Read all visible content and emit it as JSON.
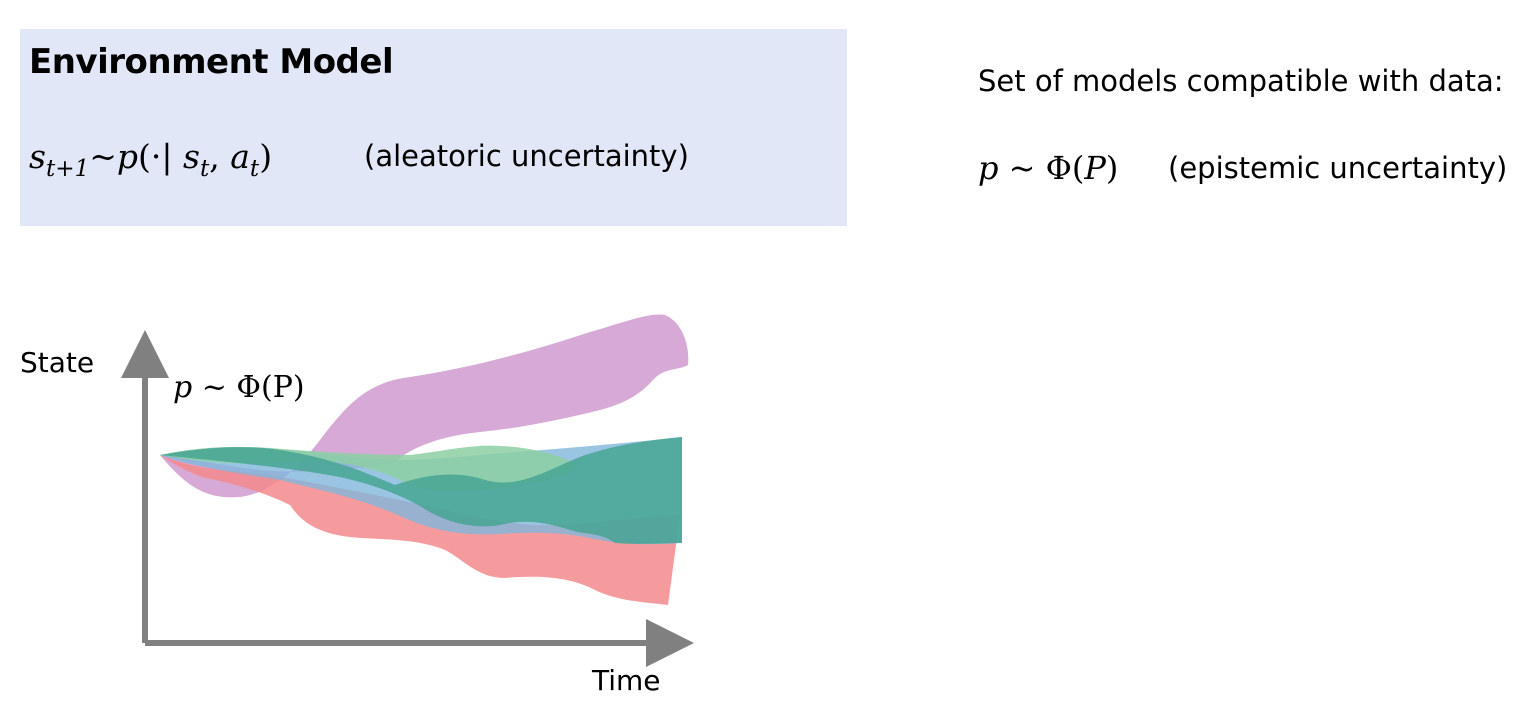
{
  "model_box": {
    "title": "Environment Model",
    "formula": {
      "lhs": "s",
      "lhs_sub": "t+1",
      "rel": "~",
      "fn": "p",
      "open": "(·| ",
      "arg1": "s",
      "arg1_sub": "t",
      "comma": ", ",
      "arg2": "a",
      "arg2_sub": "t",
      "close": ")"
    },
    "note": "(aleatoric uncertainty)",
    "background": "#e2e7f7"
  },
  "epistemic": {
    "heading": "Set of models compatible with data:",
    "formula": {
      "lhs": "p",
      "rel": " ~ Φ(",
      "arg": "P",
      "close": ")"
    },
    "note": "(epistemic uncertainty)"
  },
  "plot": {
    "y_axis_label": "State",
    "x_axis_label": "Time",
    "formula": {
      "lhs": "p",
      "rhs": " ~ Φ(P)"
    },
    "axis_color": "#808080",
    "bands": [
      {
        "color": "#c98cc8",
        "opacity": 0.75
      },
      {
        "color": "#f48a8c",
        "opacity": 0.85
      },
      {
        "color": "#7fb7dc",
        "opacity": 0.8
      },
      {
        "color": "#8ccfa3",
        "opacity": 0.85
      },
      {
        "color": "#46a593",
        "opacity": 0.85
      }
    ]
  }
}
